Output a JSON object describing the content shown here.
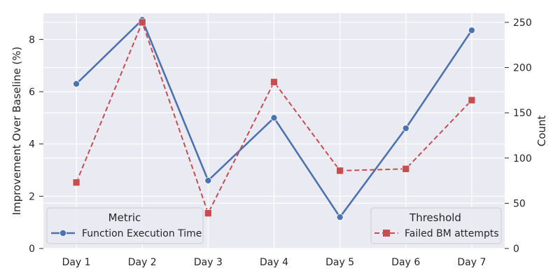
{
  "chart_data": {
    "type": "line",
    "categories": [
      "Day 1",
      "Day 2",
      "Day 3",
      "Day 4",
      "Day 5",
      "Day 6",
      "Day 7"
    ],
    "left_axis": {
      "label": "Improvement Over Baseline (%)",
      "ylim": [
        0,
        9
      ],
      "ticks": [
        0,
        2,
        4,
        6,
        8
      ]
    },
    "right_axis": {
      "label": "Count",
      "ylim": [
        0,
        260
      ],
      "ticks": [
        0,
        50,
        100,
        150,
        200,
        250
      ]
    },
    "series": [
      {
        "name": "Function Execution Time",
        "axis": "left",
        "values": [
          6.3,
          8.75,
          2.6,
          5.0,
          1.2,
          4.6,
          8.35
        ],
        "color": "#4c72b0",
        "line_style": "solid",
        "marker": "circle"
      },
      {
        "name": "Failed BM attempts",
        "axis": "right",
        "values": [
          73,
          250,
          39,
          184,
          86,
          88,
          164
        ],
        "color": "#c44e52",
        "line_style": "dashed",
        "marker": "square"
      }
    ],
    "legends": [
      {
        "title": "Metric",
        "entries": [
          "Function Execution Time"
        ],
        "placement": "lower-left"
      },
      {
        "title": "Threshold",
        "entries": [
          "Failed BM attempts"
        ],
        "placement": "lower-right"
      }
    ],
    "grid": true,
    "background": "#eaeaf2"
  }
}
